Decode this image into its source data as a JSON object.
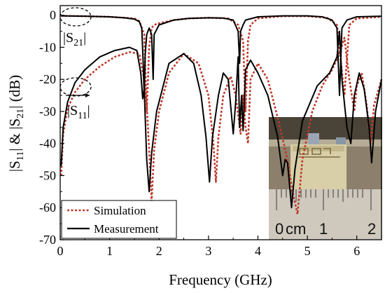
{
  "chart_data": {
    "type": "line",
    "title": "",
    "xlabel": "Frequency (GHz)",
    "ylabel_parts": [
      "|S",
      "11",
      "| & |S",
      "21",
      "|  (dB)"
    ],
    "xlim": [
      0,
      6.5
    ],
    "ylim": [
      -70,
      3
    ],
    "xticks": [
      0,
      1,
      2,
      3,
      4,
      5,
      6
    ],
    "yticks": [
      0,
      -10,
      -20,
      -30,
      -40,
      -50,
      -60,
      -70
    ],
    "grid": false,
    "legend_position": "bottom-left",
    "legend": [
      {
        "label": "Simulation",
        "color": "#c0392b",
        "style": "dotted"
      },
      {
        "label": "Measurement",
        "color": "#000000",
        "style": "solid"
      }
    ],
    "annotations": [
      {
        "name": "s21-label",
        "parts": [
          "|S",
          "21",
          "|"
        ]
      },
      {
        "name": "s11-label",
        "parts": [
          "|S",
          "11",
          "|"
        ]
      }
    ],
    "series": [
      {
        "name": "Measurement S21",
        "color": "#000000",
        "style": "solid",
        "points": [
          [
            0.02,
            -0.2
          ],
          [
            0.5,
            -0.3
          ],
          [
            1.0,
            -0.5
          ],
          [
            1.3,
            -0.8
          ],
          [
            1.5,
            -1.2
          ],
          [
            1.6,
            -2.0
          ],
          [
            1.65,
            -4.0
          ],
          [
            1.68,
            -15.0
          ],
          [
            1.7,
            -25.0
          ],
          [
            1.72,
            -12.0
          ],
          [
            1.75,
            -6.0
          ],
          [
            1.8,
            -4.0
          ],
          [
            1.85,
            -6.0
          ],
          [
            1.88,
            -20.0
          ],
          [
            1.9,
            -6.0
          ],
          [
            2.0,
            -3.0
          ],
          [
            2.3,
            -1.5
          ],
          [
            2.6,
            -1.0
          ],
          [
            3.0,
            -0.8
          ],
          [
            3.3,
            -0.9
          ],
          [
            3.5,
            -1.5
          ],
          [
            3.6,
            -5.0
          ],
          [
            3.63,
            -15.0
          ],
          [
            3.65,
            -5.0
          ],
          [
            3.7,
            -3.0
          ],
          [
            3.75,
            -1.5
          ],
          [
            4.0,
            -0.5
          ],
          [
            4.5,
            -0.2
          ],
          [
            5.0,
            -0.2
          ],
          [
            5.3,
            -0.5
          ],
          [
            5.5,
            -1.5
          ],
          [
            5.6,
            -4.0
          ],
          [
            5.65,
            -25.0
          ],
          [
            5.7,
            -4.0
          ],
          [
            5.8,
            -1.5
          ],
          [
            6.0,
            -0.5
          ],
          [
            6.5,
            -0.3
          ]
        ]
      },
      {
        "name": "Simulation S21",
        "color": "#c0392b",
        "style": "dotted",
        "points": [
          [
            0.02,
            -0.2
          ],
          [
            0.5,
            -0.3
          ],
          [
            1.0,
            -0.5
          ],
          [
            1.3,
            -0.8
          ],
          [
            1.5,
            -1.0
          ],
          [
            1.6,
            -1.8
          ],
          [
            1.7,
            -6.0
          ],
          [
            1.75,
            -30.0
          ],
          [
            1.8,
            -10.0
          ],
          [
            1.85,
            -4.0
          ],
          [
            1.9,
            -3.0
          ],
          [
            2.0,
            -2.5
          ],
          [
            2.3,
            -1.5
          ],
          [
            2.6,
            -1.0
          ],
          [
            3.0,
            -0.8
          ],
          [
            3.4,
            -1.0
          ],
          [
            3.6,
            -3.0
          ],
          [
            3.7,
            -8.0
          ],
          [
            3.75,
            -30.0
          ],
          [
            3.8,
            -8.0
          ],
          [
            3.85,
            -3.0
          ],
          [
            4.0,
            -1.0
          ],
          [
            4.5,
            -0.3
          ],
          [
            5.0,
            -0.3
          ],
          [
            5.4,
            -0.8
          ],
          [
            5.6,
            -3.0
          ],
          [
            5.75,
            -25.0
          ],
          [
            5.85,
            -3.0
          ],
          [
            6.0,
            -1.0
          ],
          [
            6.5,
            -0.5
          ]
        ]
      },
      {
        "name": "Measurement S11",
        "color": "#000000",
        "style": "solid",
        "points": [
          [
            0.02,
            -47.0
          ],
          [
            0.06,
            -35.0
          ],
          [
            0.15,
            -27.0
          ],
          [
            0.3,
            -21.0
          ],
          [
            0.5,
            -17.0
          ],
          [
            0.8,
            -13.0
          ],
          [
            1.1,
            -11.0
          ],
          [
            1.4,
            -10.0
          ],
          [
            1.55,
            -11.0
          ],
          [
            1.63,
            -18.0
          ],
          [
            1.67,
            -26.0
          ],
          [
            1.7,
            -23.0
          ],
          [
            1.75,
            -45.0
          ],
          [
            1.8,
            -55.0
          ],
          [
            1.85,
            -43.0
          ],
          [
            1.95,
            -30.0
          ],
          [
            2.2,
            -15.0
          ],
          [
            2.5,
            -12.0
          ],
          [
            2.7,
            -15.0
          ],
          [
            2.85,
            -25.0
          ],
          [
            2.95,
            -38.0
          ],
          [
            3.02,
            -52.0
          ],
          [
            3.08,
            -38.0
          ],
          [
            3.2,
            -25.0
          ],
          [
            3.3,
            -18.0
          ],
          [
            3.4,
            -20.0
          ],
          [
            3.5,
            -37.0
          ],
          [
            3.55,
            -27.0
          ],
          [
            3.6,
            -13.0
          ],
          [
            3.63,
            -35.0
          ],
          [
            3.67,
            -25.0
          ],
          [
            3.7,
            -36.0
          ],
          [
            3.75,
            -17.0
          ],
          [
            3.85,
            -14.0
          ],
          [
            4.0,
            -18.0
          ],
          [
            4.2,
            -25.0
          ],
          [
            4.4,
            -38.0
          ],
          [
            4.5,
            -50.0
          ],
          [
            4.55,
            -45.0
          ],
          [
            4.6,
            -46.0
          ],
          [
            4.68,
            -60.0
          ],
          [
            4.75,
            -48.0
          ],
          [
            4.9,
            -33.0
          ],
          [
            5.2,
            -22.0
          ],
          [
            5.45,
            -18.0
          ],
          [
            5.6,
            -13.0
          ],
          [
            5.65,
            -5.0
          ],
          [
            5.7,
            -20.0
          ],
          [
            5.8,
            -35.0
          ],
          [
            5.88,
            -40.0
          ],
          [
            5.95,
            -25.0
          ],
          [
            6.05,
            -18.0
          ],
          [
            6.15,
            -23.0
          ],
          [
            6.25,
            -35.0
          ],
          [
            6.3,
            -46.0
          ],
          [
            6.38,
            -30.0
          ],
          [
            6.5,
            -20.0
          ]
        ]
      },
      {
        "name": "Simulation S11",
        "color": "#c0392b",
        "style": "dotted",
        "points": [
          [
            0.02,
            -50.0
          ],
          [
            0.06,
            -37.0
          ],
          [
            0.15,
            -29.0
          ],
          [
            0.3,
            -24.0
          ],
          [
            0.5,
            -20.0
          ],
          [
            0.8,
            -16.0
          ],
          [
            1.1,
            -13.0
          ],
          [
            1.4,
            -11.5
          ],
          [
            1.6,
            -12.0
          ],
          [
            1.7,
            -20.0
          ],
          [
            1.75,
            -28.0
          ],
          [
            1.8,
            -42.0
          ],
          [
            1.85,
            -58.0
          ],
          [
            1.9,
            -42.0
          ],
          [
            2.0,
            -30.0
          ],
          [
            2.2,
            -18.0
          ],
          [
            2.5,
            -12.0
          ],
          [
            2.8,
            -15.0
          ],
          [
            3.0,
            -25.0
          ],
          [
            3.1,
            -40.0
          ],
          [
            3.15,
            -52.0
          ],
          [
            3.2,
            -38.0
          ],
          [
            3.3,
            -25.0
          ],
          [
            3.45,
            -19.0
          ],
          [
            3.55,
            -25.0
          ],
          [
            3.65,
            -37.0
          ],
          [
            3.7,
            -25.0
          ],
          [
            3.75,
            -35.0
          ],
          [
            3.8,
            -40.0
          ],
          [
            3.85,
            -20.0
          ],
          [
            4.0,
            -15.0
          ],
          [
            4.2,
            -20.0
          ],
          [
            4.4,
            -32.0
          ],
          [
            4.6,
            -45.0
          ],
          [
            4.7,
            -55.0
          ],
          [
            4.8,
            -62.0
          ],
          [
            4.9,
            -45.0
          ],
          [
            5.1,
            -30.0
          ],
          [
            5.3,
            -22.0
          ],
          [
            5.5,
            -17.0
          ],
          [
            5.65,
            -12.0
          ],
          [
            5.75,
            -7.0
          ],
          [
            5.85,
            -20.0
          ],
          [
            5.95,
            -30.0
          ],
          [
            6.0,
            -22.0
          ],
          [
            6.1,
            -18.0
          ],
          [
            6.2,
            -28.0
          ],
          [
            6.28,
            -40.0
          ],
          [
            6.35,
            -28.0
          ],
          [
            6.5,
            -20.0
          ]
        ]
      }
    ],
    "inset_photo": {
      "ruler_labels": [
        "0",
        "cm",
        "1",
        "2"
      ]
    }
  }
}
